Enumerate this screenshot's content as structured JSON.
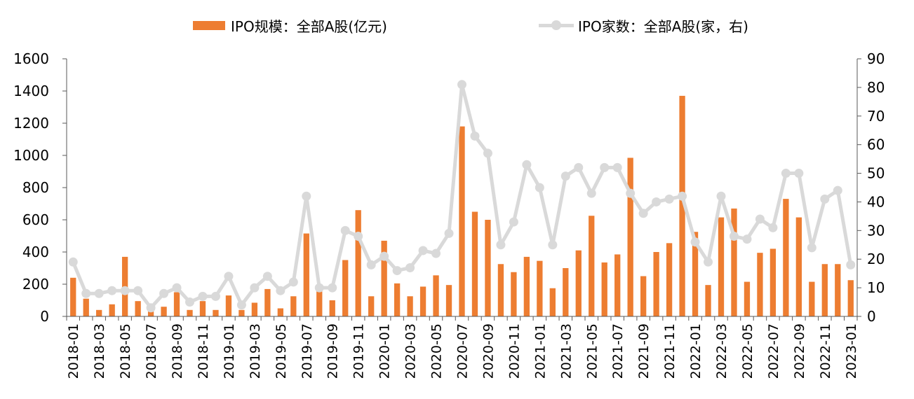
{
  "legend": {
    "bar_label": "IPO规模：全部A股(亿元)",
    "line_label": "IPO家数：全部A股(家，右)"
  },
  "colors": {
    "bar": "#ED7D31",
    "line": "#D9D9D9",
    "axis": "#595959"
  },
  "chart_data": {
    "type": "bar+line",
    "categories": [
      "2018-01",
      "2018-02",
      "2018-03",
      "2018-04",
      "2018-05",
      "2018-06",
      "2018-07",
      "2018-08",
      "2018-09",
      "2018-10",
      "2018-11",
      "2018-12",
      "2019-01",
      "2019-02",
      "2019-03",
      "2019-04",
      "2019-05",
      "2019-06",
      "2019-07",
      "2019-08",
      "2019-09",
      "2019-10",
      "2019-11",
      "2019-12",
      "2020-01",
      "2020-02",
      "2020-03",
      "2020-04",
      "2020-05",
      "2020-06",
      "2020-07",
      "2020-08",
      "2020-09",
      "2020-10",
      "2020-11",
      "2020-12",
      "2021-01",
      "2021-02",
      "2021-03",
      "2021-04",
      "2021-05",
      "2021-06",
      "2021-07",
      "2021-08",
      "2021-09",
      "2021-10",
      "2021-11",
      "2021-12",
      "2022-01",
      "2022-02",
      "2022-03",
      "2022-04",
      "2022-05",
      "2022-06",
      "2022-07",
      "2022-08",
      "2022-09",
      "2022-10",
      "2022-11",
      "2022-12",
      "2023-01"
    ],
    "x_tick_labels": [
      "2018-01",
      "2018-03",
      "2018-05",
      "2018-07",
      "2018-09",
      "2018-11",
      "2019-01",
      "2019-03",
      "2019-05",
      "2019-07",
      "2019-09",
      "2019-11",
      "2020-01",
      "2020-03",
      "2020-05",
      "2020-07",
      "2020-09",
      "2020-11",
      "2021-01",
      "2021-03",
      "2021-05",
      "2021-07",
      "2021-09",
      "2021-11",
      "2022-01",
      "2022-03",
      "2022-05",
      "2022-07",
      "2022-09",
      "2022-11",
      "2023-01"
    ],
    "series": [
      {
        "name": "IPO规模：全部A股(亿元)",
        "type": "bar",
        "axis": "left",
        "values": [
          240,
          110,
          40,
          75,
          370,
          95,
          30,
          60,
          150,
          40,
          95,
          40,
          130,
          40,
          85,
          170,
          50,
          125,
          515,
          155,
          100,
          350,
          660,
          125,
          470,
          205,
          125,
          185,
          255,
          195,
          1180,
          650,
          600,
          325,
          275,
          370,
          345,
          175,
          300,
          410,
          625,
          335,
          385,
          985,
          250,
          400,
          455,
          1370,
          525,
          195,
          615,
          670,
          215,
          395,
          420,
          730,
          615,
          215,
          325,
          325,
          225
        ]
      },
      {
        "name": "IPO家数：全部A股(家，右)",
        "type": "line",
        "axis": "right",
        "values": [
          19,
          8,
          8,
          9,
          9,
          9,
          3,
          8,
          10,
          5,
          7,
          7,
          14,
          4,
          10,
          14,
          9,
          12,
          42,
          10,
          10,
          30,
          28,
          18,
          21,
          16,
          17,
          23,
          22,
          29,
          81,
          63,
          57,
          25,
          33,
          53,
          45,
          25,
          49,
          52,
          43,
          52,
          52,
          43,
          36,
          40,
          41,
          42,
          26,
          19,
          42,
          28,
          27,
          34,
          31,
          50,
          50,
          24,
          41,
          44,
          18
        ]
      }
    ],
    "y_left": {
      "min": 0,
      "max": 1600,
      "ticks": [
        "0",
        "200",
        "400",
        "600",
        "800",
        "1000",
        "1200",
        "1400",
        "1600"
      ]
    },
    "y_right": {
      "min": 0,
      "max": 90,
      "ticks": [
        "0",
        "10",
        "20",
        "30",
        "40",
        "50",
        "60",
        "70",
        "80",
        "90"
      ]
    },
    "grid": false,
    "legend_position": "top-center"
  }
}
